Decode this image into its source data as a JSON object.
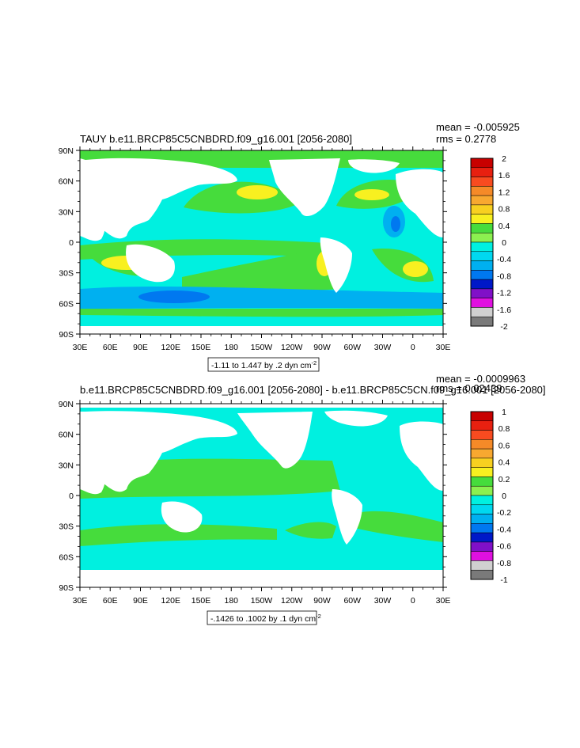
{
  "chart_data": [
    {
      "type": "heatmap",
      "title": "TAUY b.e11.BRCP85C5CNBDRD.f09_g16.001 [2056-2080]",
      "stats": [
        "mean = -0.005925",
        "rms = 0.2778"
      ],
      "x_ticks": [
        "30E",
        "60E",
        "90E",
        "120E",
        "150E",
        "180",
        "150W",
        "120W",
        "90W",
        "60W",
        "30W",
        "0",
        "30E"
      ],
      "y_ticks": [
        "90N",
        "60N",
        "30N",
        "0",
        "30S",
        "60S",
        "90S"
      ],
      "range_label": "-1.11 to 1.447 by .2 dyn cm",
      "range_sup": "-2",
      "colorbar": {
        "labels": [
          "2",
          "1.6",
          "1.2",
          "0.8",
          "0.4",
          "0",
          "-0.4",
          "-0.8",
          "-1.2",
          "-1.6",
          "-2"
        ],
        "colors": [
          "#c80000",
          "#e82010",
          "#f84b20",
          "#f58a28",
          "#f8a830",
          "#f8d020",
          "#f8f020",
          "#46dc3c",
          "#8cf050",
          "#00f0e0",
          "#00d8f0",
          "#00b0f0",
          "#0078f0",
          "#0018c8",
          "#8010c8",
          "#e010e0",
          "#d0d0d0",
          "#7a7a7a"
        ]
      },
      "x_range": [
        30,
        390
      ],
      "y_range": [
        -90,
        90
      ]
    },
    {
      "type": "heatmap",
      "title": "b.e11.BRCP85C5CNBDRD.f09_g16.001 [2056-2080] - b.e11.BRCP85C5CN.f09_g16.001 [2056-2080]",
      "stats": [
        "mean = -0.0009963",
        "rms = 0.02439"
      ],
      "x_ticks": [
        "30E",
        "60E",
        "90E",
        "120E",
        "150E",
        "180",
        "150W",
        "120W",
        "90W",
        "60W",
        "30W",
        "0",
        "30E"
      ],
      "y_ticks": [
        "90N",
        "60N",
        "30N",
        "0",
        "30S",
        "60S",
        "90S"
      ],
      "range_label": "-.1426 to .1002 by .1 dyn cm",
      "range_sup": "-2",
      "colorbar": {
        "labels": [
          "1",
          "0.8",
          "0.6",
          "0.4",
          "0.2",
          "0",
          "-0.2",
          "-0.4",
          "-0.6",
          "-0.8",
          "-1"
        ],
        "colors": [
          "#c80000",
          "#e82010",
          "#f84b20",
          "#f58a28",
          "#f8a830",
          "#f8d020",
          "#f8f020",
          "#46dc3c",
          "#8cf050",
          "#00f0e0",
          "#00d8f0",
          "#00b0f0",
          "#0078f0",
          "#0018c8",
          "#8010c8",
          "#e010e0",
          "#d0d0d0",
          "#7a7a7a"
        ]
      },
      "x_range": [
        30,
        390
      ],
      "y_range": [
        -90,
        90
      ]
    }
  ]
}
